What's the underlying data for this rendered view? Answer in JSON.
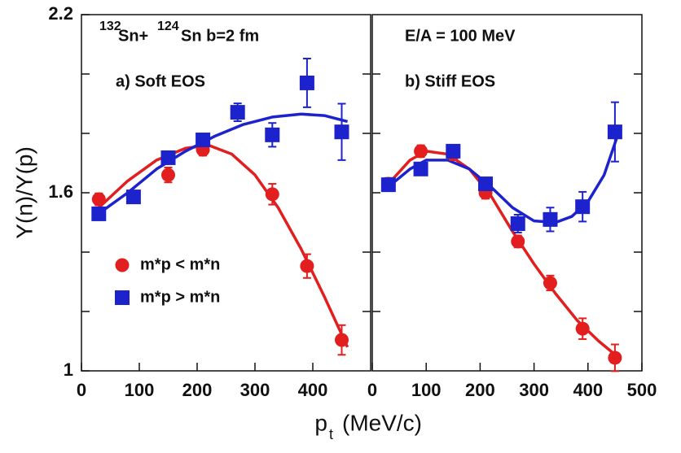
{
  "figure": {
    "y_label": "Y(n)/Y(p)",
    "x_label_main": "p",
    "x_label_sub": "t",
    "x_label_rest": "(MeV/c)",
    "reaction": {
      "mass1": "132",
      "el1": "Sn+",
      "mass2": "124",
      "el2": "Sn b=2 fm"
    },
    "energy": "E/A = 100 MeV"
  },
  "chart_data": [
    {
      "type": "scatter",
      "panel_label": "a) Soft EOS",
      "xlim": [
        0,
        500
      ],
      "xticks": [
        0,
        100,
        200,
        300,
        400
      ],
      "ylim": [
        1,
        2.2
      ],
      "yticks": [
        1,
        1.6,
        2.2
      ],
      "yminor": [
        1.2,
        1.4,
        1.8,
        2.0
      ],
      "series": [
        {
          "name": "m*p < m*n",
          "marker": "circle",
          "color": "#e31e1e",
          "x": [
            30,
            150,
            210,
            330,
            390,
            450
          ],
          "values": [
            1.578,
            1.66,
            1.745,
            1.595,
            1.353,
            1.104
          ],
          "errors": [
            0.02,
            0.025,
            0.02,
            0.035,
            0.04,
            0.05
          ]
        },
        {
          "name": "m*p > m*n",
          "marker": "square",
          "color": "#1c22cc",
          "x": [
            30,
            90,
            150,
            210,
            270,
            330,
            390,
            450
          ],
          "values": [
            1.529,
            1.586,
            1.718,
            1.778,
            1.871,
            1.795,
            1.97,
            1.805
          ],
          "errors": [
            0.02,
            0.02,
            0.02,
            0.02,
            0.03,
            0.04,
            0.082,
            0.095
          ]
        }
      ],
      "curves": [
        {
          "color": "#e31e1e",
          "x": [
            30,
            80,
            130,
            180,
            220,
            260,
            300,
            340,
            380,
            420,
            460
          ],
          "values": [
            1.55,
            1.64,
            1.71,
            1.75,
            1.76,
            1.73,
            1.66,
            1.55,
            1.41,
            1.25,
            1.08
          ]
        },
        {
          "color": "#1c22cc",
          "x": [
            30,
            80,
            130,
            180,
            230,
            280,
            330,
            380,
            420,
            460
          ],
          "values": [
            1.53,
            1.6,
            1.68,
            1.74,
            1.79,
            1.83,
            1.855,
            1.865,
            1.86,
            1.84
          ]
        }
      ]
    },
    {
      "type": "scatter",
      "panel_label": "b) Stiff EOS",
      "xlim": [
        0,
        500
      ],
      "xticks": [
        0,
        100,
        200,
        300,
        400,
        500
      ],
      "ylim": [
        1,
        2.2
      ],
      "yminor": [
        1.2,
        1.4,
        1.6,
        1.8,
        2.0
      ],
      "series": [
        {
          "marker": "circle",
          "color": "#e31e1e",
          "x": [
            30,
            90,
            150,
            210,
            270,
            330,
            390,
            450
          ],
          "values": [
            1.63,
            1.74,
            1.73,
            1.6,
            1.436,
            1.296,
            1.142,
            1.044
          ],
          "errors": [
            0.02,
            0.02,
            0.02,
            0.02,
            0.02,
            0.025,
            0.035,
            0.045
          ]
        },
        {
          "marker": "square",
          "color": "#1c22cc",
          "x": [
            30,
            90,
            150,
            210,
            270,
            330,
            390,
            450
          ],
          "values": [
            1.627,
            1.68,
            1.74,
            1.63,
            1.496,
            1.51,
            1.553,
            1.805
          ],
          "errors": [
            0.02,
            0.02,
            0.02,
            0.02,
            0.03,
            0.04,
            0.05,
            0.1
          ]
        }
      ],
      "curves": [
        {
          "color": "#e31e1e",
          "x": [
            30,
            70,
            100,
            140,
            180,
            220,
            260,
            300,
            340,
            380,
            420,
            460
          ],
          "values": [
            1.63,
            1.71,
            1.74,
            1.73,
            1.68,
            1.59,
            1.47,
            1.36,
            1.26,
            1.17,
            1.1,
            1.04
          ]
        },
        {
          "color": "#1c22cc",
          "x": [
            30,
            70,
            100,
            140,
            180,
            220,
            260,
            300,
            340,
            370,
            400,
            430,
            460
          ],
          "values": [
            1.62,
            1.68,
            1.71,
            1.71,
            1.68,
            1.62,
            1.55,
            1.505,
            1.5,
            1.52,
            1.57,
            1.66,
            1.82
          ]
        }
      ]
    }
  ]
}
